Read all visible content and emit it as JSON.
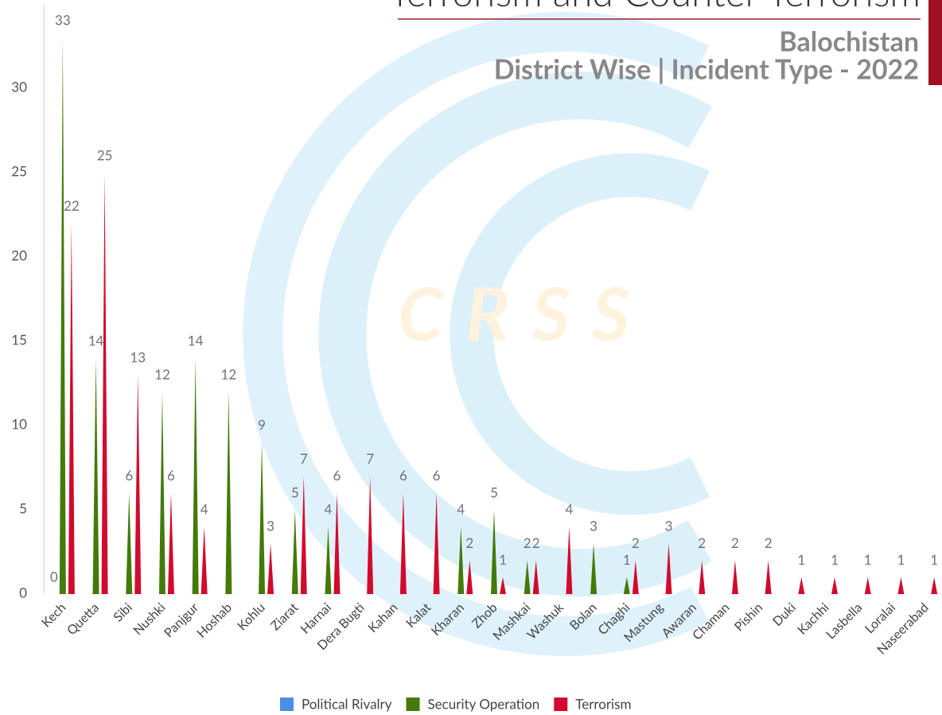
{
  "chart_data": {
    "type": "bar",
    "title": "Terrorism and Counter Terrorism",
    "subtitle": "Balochistan",
    "subtitle2": "District Wise | Incident Type - 2022",
    "watermark": "C R S S",
    "categories": [
      "Kech",
      "Quetta",
      "Sibi",
      "Nushki",
      "Panjgur",
      "Hoshab",
      "Kohlu",
      "Ziarat",
      "Harnai",
      "Dera Bugti",
      "Kahan",
      "Kalat",
      "Kharan",
      "Zhob",
      "Mashkai",
      "Washuk",
      "Bolan",
      "Chaghi",
      "Mastung",
      "Awaran",
      "Chaman",
      "Pishin",
      "Duki",
      "Kachhi",
      "Lasbella",
      "Loralai",
      "Naseerabad"
    ],
    "series": [
      {
        "name": "Political Rivalry",
        "color": "#4a90e2",
        "values": [
          0,
          null,
          null,
          null,
          null,
          null,
          null,
          null,
          null,
          null,
          null,
          null,
          null,
          null,
          null,
          null,
          null,
          null,
          null,
          null,
          null,
          null,
          null,
          null,
          null,
          null,
          null
        ]
      },
      {
        "name": "Security Operation",
        "color": "#437a08",
        "values": [
          33,
          14,
          6,
          12,
          14,
          12,
          9,
          5,
          4,
          null,
          null,
          null,
          4,
          5,
          2,
          null,
          3,
          1,
          null,
          null,
          null,
          null,
          null,
          null,
          null,
          null,
          null
        ]
      },
      {
        "name": "Terrorism",
        "color": "#d20a2e",
        "values": [
          22,
          25,
          13,
          6,
          4,
          null,
          3,
          7,
          6,
          7,
          6,
          6,
          2,
          1,
          2,
          4,
          null,
          2,
          3,
          2,
          2,
          2,
          1,
          1,
          1,
          1,
          1
        ]
      }
    ],
    "ylim": [
      0,
      35
    ],
    "yticks": [
      0,
      5,
      10,
      15,
      20,
      25,
      30
    ],
    "grid": false
  }
}
